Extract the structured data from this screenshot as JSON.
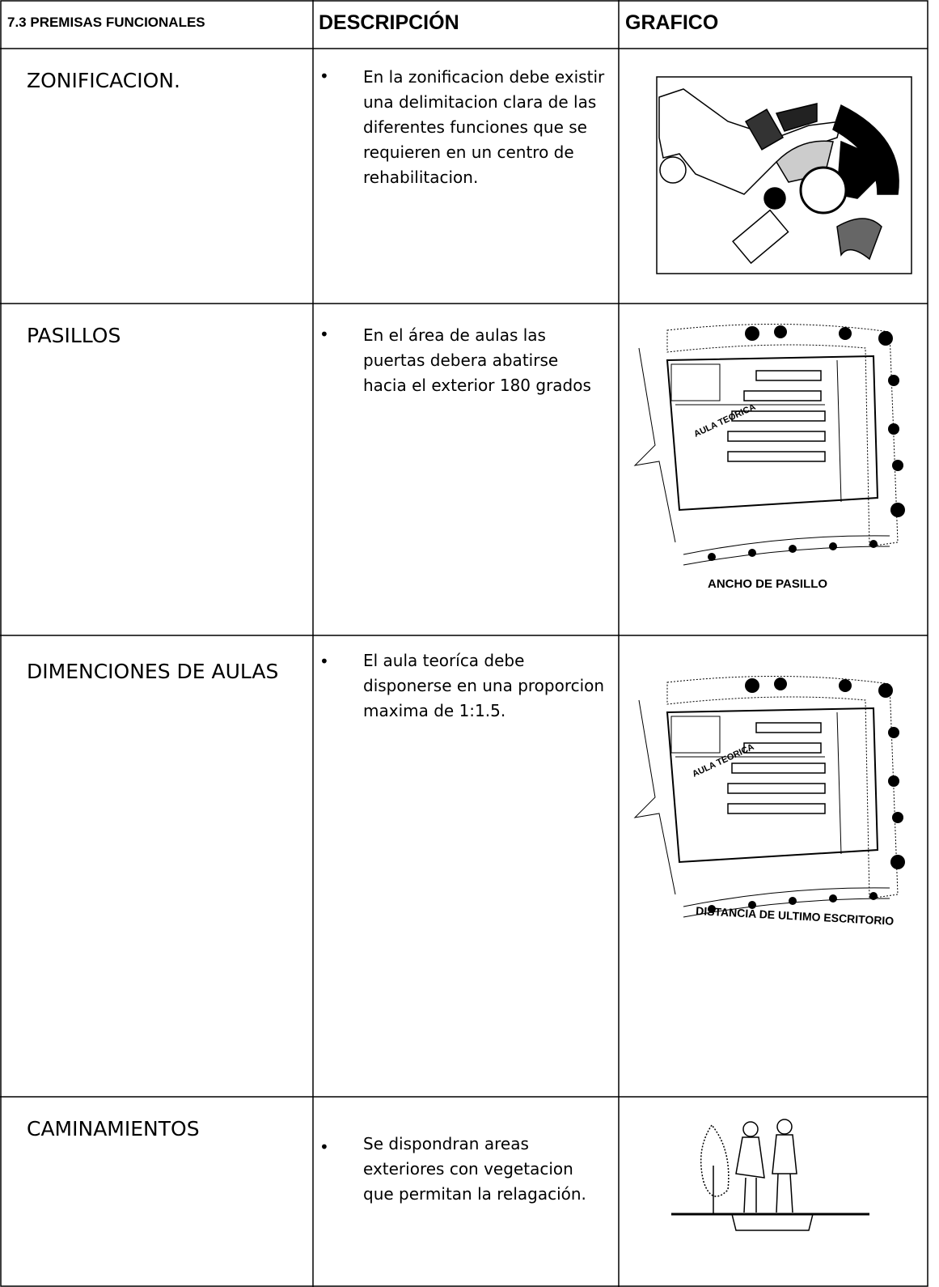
{
  "header": {
    "title": "7.3 PREMISAS FUNCIONALES",
    "description": "DESCRIPCIÓN",
    "graphic": "GRAFICO"
  },
  "rows": [
    {
      "name": "ZONIFICACION.",
      "description": "En la zonificacion debe existir una delimitacion clara de las diferentes funciones que se requieren en un centro de rehabilitacion."
    },
    {
      "name": "PASILLOS",
      "description": "En el área de aulas las puertas debera abatirse hacia el exterior 180 grados",
      "graphic_labels": [
        "AULA TEORICA",
        "ANCHO DE PASILLO"
      ]
    },
    {
      "name": "DIMENCIONES DE AULAS",
      "description": "El aula teoríca debe disponerse en una proporcion maxima de 1:1.5.",
      "graphic_labels": [
        "AULA TEORICA",
        "DISTANCIA DE ULTIMO ESCRITORIO"
      ]
    },
    {
      "name": "CAMINAMIENTOS",
      "description": "Se dispondran areas exteriores con vegetacion que permitan la relagación."
    }
  ]
}
